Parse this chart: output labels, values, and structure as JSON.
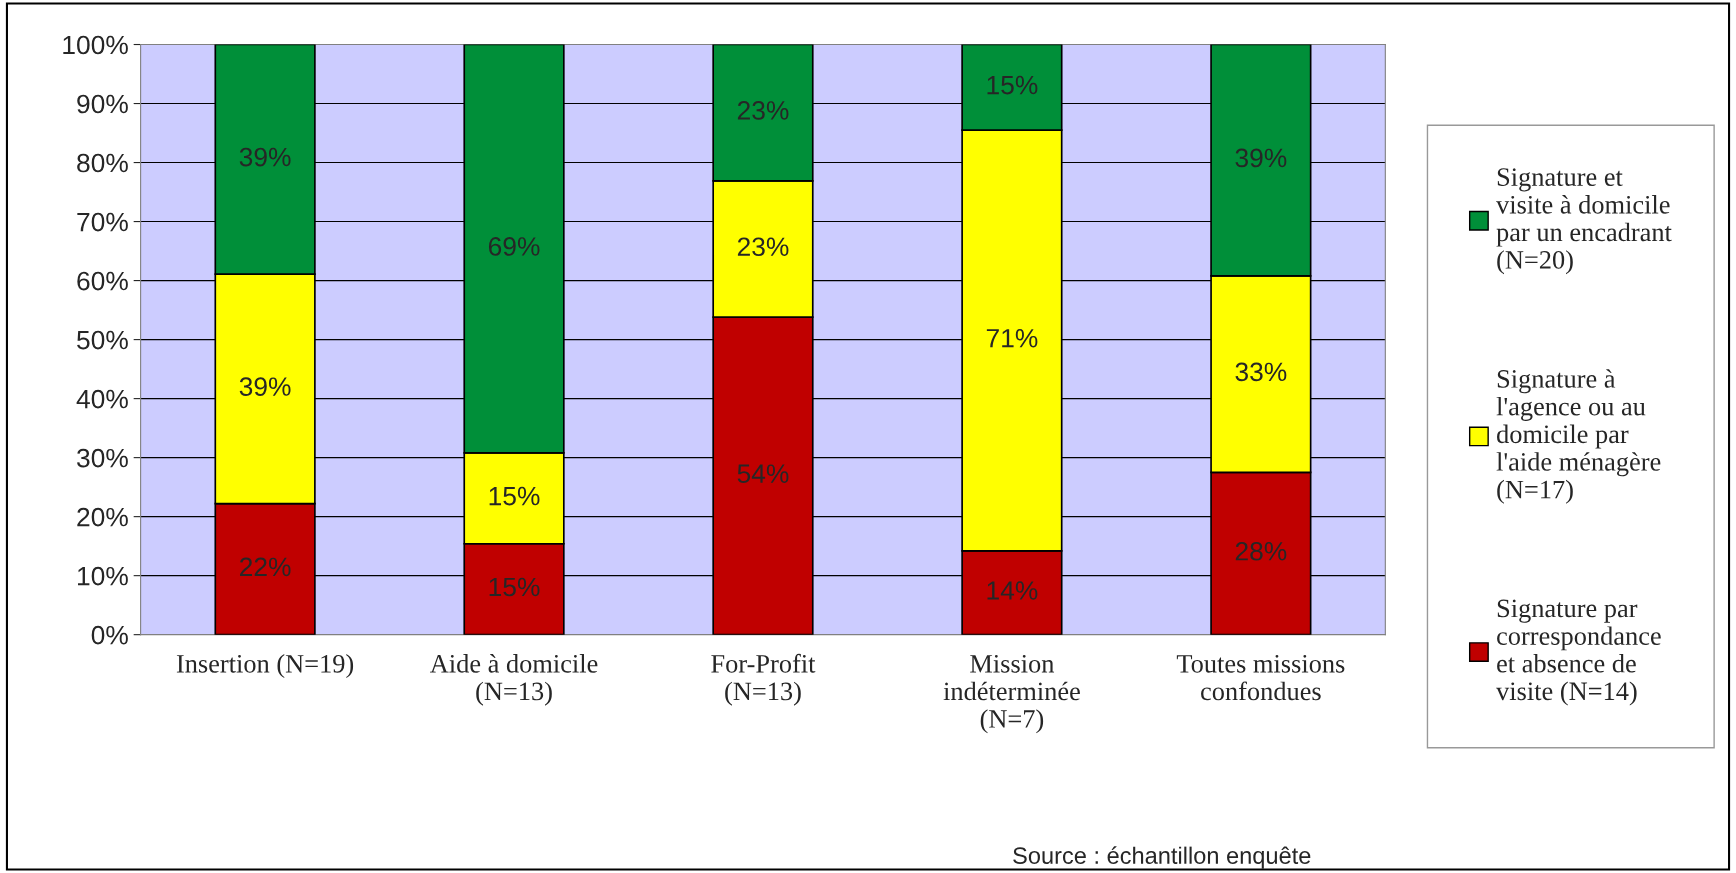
{
  "chart_data": {
    "type": "bar",
    "stacked": true,
    "categories": [
      "Insertion (N=19)",
      "Aide à domicile\n(N=13)",
      "For-Profit\n(N=13)",
      "Mission\nindéterminée\n(N=7)",
      "Toutes missions\nconfondues"
    ],
    "series": [
      {
        "name": "Signature par\ncorrespondance\net absence de\nvisite (N=14)",
        "color": "#c00000",
        "values": [
          22.2,
          15.4,
          53.8,
          14.2,
          27.5
        ],
        "value_labels": [
          "22%",
          "15%",
          "54%",
          "14%",
          "28%"
        ]
      },
      {
        "name": "Signature à\nl'agence ou au\ndomicile par\nl'aide ménagère\n(N=17)",
        "color": "#ffff00",
        "values": [
          38.9,
          15.4,
          23.1,
          71.3,
          33.3
        ],
        "value_labels": [
          "39%",
          "15%",
          "23%",
          "71%",
          "33%"
        ]
      },
      {
        "name": "Signature et\nvisite à domicile\npar un encadrant\n(N=20)",
        "color": "#008f39",
        "values": [
          38.9,
          69.2,
          23.1,
          14.5,
          39.2
        ],
        "value_labels": [
          "39%",
          "69%",
          "23%",
          "15%",
          "39%"
        ]
      }
    ],
    "ylim": [
      0,
      100
    ],
    "yticks": [
      {
        "value": 0,
        "label": "0%"
      },
      {
        "value": 10,
        "label": "10%"
      },
      {
        "value": 20,
        "label": "20%"
      },
      {
        "value": 30,
        "label": "30%"
      },
      {
        "value": 40,
        "label": "40%"
      },
      {
        "value": 50,
        "label": "50%"
      },
      {
        "value": 60,
        "label": "60%"
      },
      {
        "value": 70,
        "label": "70%"
      },
      {
        "value": 80,
        "label": "80%"
      },
      {
        "value": 90,
        "label": "90%"
      },
      {
        "value": 100,
        "label": "100%"
      }
    ],
    "grid": "y",
    "legend": "right",
    "annotations": [
      "Source : échantillon enquête"
    ]
  }
}
